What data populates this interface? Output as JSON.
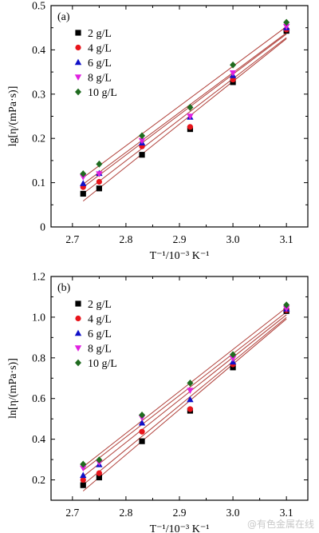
{
  "watermark": "@有色金属在线",
  "colors": {
    "fit_line": "#b0403a",
    "axis": "#000000"
  },
  "chart_data": [
    {
      "type": "scatter",
      "panel_label": "(a)",
      "xlabel": "T⁻¹/10⁻³ K⁻¹",
      "ylabel": "lg[η/(mPa·s)]",
      "xlim": [
        2.66,
        3.14
      ],
      "ylim": [
        0,
        0.5
      ],
      "xticks": [
        "2.7",
        "2.8",
        "2.9",
        "3.0",
        "3.1"
      ],
      "yticks": [
        "0",
        "0.1",
        "0.2",
        "0.3",
        "0.4",
        "0.5"
      ],
      "legend_position": "upper-left",
      "fit_lines": true,
      "x": [
        2.72,
        2.75,
        2.83,
        2.92,
        3.0,
        3.1
      ],
      "series": [
        {
          "name": "2 g/L",
          "marker": "square",
          "color": "#000000",
          "values": [
            0.075,
            0.087,
            0.163,
            0.221,
            0.327,
            0.443
          ]
        },
        {
          "name": "4 g/L",
          "marker": "circle",
          "color": "#e8141b",
          "values": [
            0.09,
            0.102,
            0.182,
            0.226,
            0.333,
            0.446
          ]
        },
        {
          "name": "6 g/L",
          "marker": "triangle-up",
          "color": "#1010c8",
          "values": [
            0.098,
            0.121,
            0.19,
            0.248,
            0.342,
            0.45
          ]
        },
        {
          "name": "8 g/L",
          "marker": "triangle-down",
          "color": "#e020e0",
          "values": [
            0.113,
            0.12,
            0.195,
            0.25,
            0.348,
            0.453
          ]
        },
        {
          "name": "10 g/L",
          "marker": "diamond",
          "color": "#1f6b1f",
          "values": [
            0.12,
            0.142,
            0.206,
            0.27,
            0.366,
            0.462
          ]
        }
      ]
    },
    {
      "type": "scatter",
      "panel_label": "(b)",
      "xlabel": "T⁻¹/10⁻³ K⁻¹",
      "ylabel": "ln[η/(mPa·s)]",
      "xlim": [
        2.66,
        3.14
      ],
      "ylim": [
        0.1,
        1.2
      ],
      "xticks": [
        "2.7",
        "2.8",
        "2.9",
        "3.0",
        "3.1"
      ],
      "yticks": [
        "0.2",
        "0.4",
        "0.6",
        "0.8",
        "1.0",
        "1.2"
      ],
      "legend_position": "upper-left",
      "fit_lines": true,
      "x": [
        2.72,
        2.75,
        2.83,
        2.92,
        3.0,
        3.1
      ],
      "series": [
        {
          "name": "2 g/L",
          "marker": "square",
          "color": "#000000",
          "values": [
            0.174,
            0.212,
            0.39,
            0.54,
            0.753,
            1.03
          ]
        },
        {
          "name": "4 g/L",
          "marker": "circle",
          "color": "#e8141b",
          "values": [
            0.2,
            0.233,
            0.437,
            0.548,
            0.768,
            1.035
          ]
        },
        {
          "name": "6 g/L",
          "marker": "triangle-up",
          "color": "#1010c8",
          "values": [
            0.222,
            0.275,
            0.48,
            0.595,
            0.78,
            1.04
          ]
        },
        {
          "name": "8 g/L",
          "marker": "triangle-down",
          "color": "#e020e0",
          "values": [
            0.258,
            0.285,
            0.506,
            0.64,
            0.797,
            1.043
          ]
        },
        {
          "name": "10 g/L",
          "marker": "diamond",
          "color": "#1f6b1f",
          "values": [
            0.277,
            0.298,
            0.519,
            0.676,
            0.816,
            1.06
          ]
        }
      ]
    }
  ]
}
